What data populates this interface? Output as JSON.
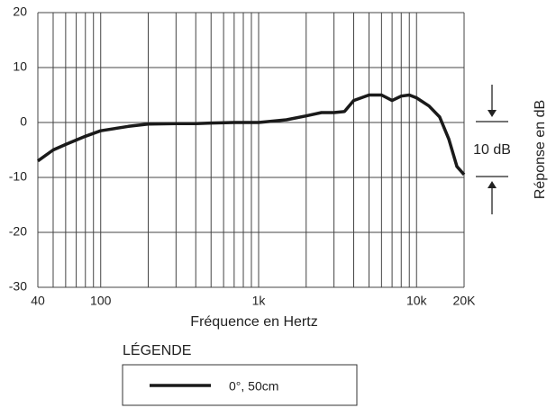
{
  "chart_data": {
    "type": "line",
    "x_label": "Fréquence en Hertz",
    "y_label": "Réponse en dB",
    "annotation": "10 dB",
    "legend_title": "LÉGENDE",
    "log_x": true,
    "grid": true,
    "xlim": [
      40,
      20000
    ],
    "ylim": [
      -30,
      20
    ],
    "xticks": [
      40,
      100,
      {
        "value": 1000,
        "label": "1k"
      },
      {
        "value": 10000,
        "label": "10k"
      },
      {
        "value": 20000,
        "label": "20K"
      }
    ],
    "minor_xticks": [
      50,
      60,
      70,
      80,
      90,
      200,
      300,
      400,
      500,
      600,
      700,
      800,
      900,
      2000,
      3000,
      4000,
      5000,
      6000,
      7000,
      8000,
      9000
    ],
    "yticks": [
      -30,
      -20,
      -10,
      0,
      10,
      20
    ],
    "x": [
      40,
      50,
      60,
      80,
      100,
      150,
      200,
      300,
      400,
      500,
      700,
      1000,
      1500,
      2000,
      2500,
      3000,
      3500,
      4000,
      5000,
      6000,
      7000,
      8000,
      9000,
      10000,
      12000,
      14000,
      16000,
      18000,
      20000
    ],
    "series": [
      {
        "name": "0°, 50cm",
        "color": "#1a1a1a",
        "values": [
          -7,
          -5,
          -4,
          -2.5,
          -1.5,
          -0.7,
          -0.3,
          -0.2,
          -0.2,
          -0.1,
          0,
          0,
          0.5,
          1.2,
          1.8,
          1.8,
          2,
          4,
          5,
          5,
          4,
          4.8,
          5,
          4.5,
          3,
          1,
          -3,
          -8,
          -9.5
        ]
      }
    ]
  }
}
